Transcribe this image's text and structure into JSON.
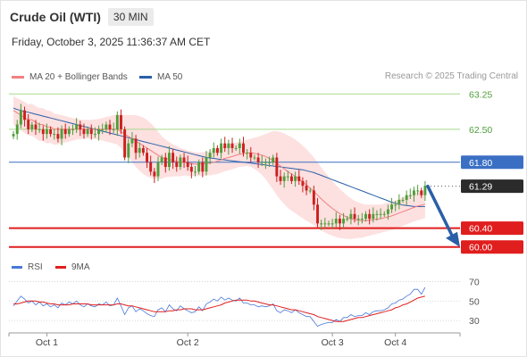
{
  "header": {
    "title": "Crude Oil (WTI)",
    "timeframe": "30 MIN",
    "datetime": "Friday, October 3, 2025 11:36:37 AM CET"
  },
  "legend": {
    "ma20_label": "MA 20 + Bollinger Bands",
    "ma50_label": "MA 50",
    "credit": "Research © 2025 Trading Central",
    "rsi_label": "RSI",
    "rsi_ma_label": "9MA"
  },
  "colors": {
    "up": "#4f9d3a",
    "down": "#cc1f1f",
    "ma20": "#f08080",
    "ma50": "#2a5fa8",
    "band": "#fcd6d6",
    "resistance": "#a8d98a",
    "support_line": "#e01e1e",
    "pivot_line": "#3b6fc4",
    "rsi": "#4a78d8",
    "rsi_ma": "#e01e1e"
  },
  "chart_data": [
    {
      "type": "candlestick",
      "y_range": [
        59.9,
        63.35
      ],
      "levels": [
        {
          "value": 63.25,
          "label": "63.25",
          "kind": "resistance"
        },
        {
          "value": 62.5,
          "label": "62.50",
          "kind": "resistance"
        },
        {
          "value": 61.8,
          "label": "61.80",
          "kind": "pivot"
        },
        {
          "value": 61.29,
          "label": "61.29",
          "kind": "last"
        },
        {
          "value": 60.4,
          "label": "60.40",
          "kind": "support"
        },
        {
          "value": 60.0,
          "label": "60.00",
          "kind": "support"
        }
      ],
      "x_ticks": [
        "Oct 1",
        "Oct 2",
        "Oct 3",
        "Oct 4"
      ],
      "x_tick_index": [
        9,
        47,
        86,
        103
      ],
      "close": [
        62.4,
        62.6,
        62.9,
        62.7,
        62.5,
        62.6,
        62.5,
        62.5,
        62.4,
        62.5,
        62.4,
        62.4,
        62.3,
        62.5,
        62.4,
        62.5,
        62.5,
        62.6,
        62.5,
        62.4,
        62.5,
        62.4,
        62.4,
        62.5,
        62.5,
        62.6,
        62.5,
        62.5,
        62.8,
        62.5,
        61.9,
        62.2,
        62.3,
        62.0,
        62.1,
        62.0,
        61.8,
        61.6,
        61.5,
        61.8,
        61.9,
        61.7,
        62.0,
        61.8,
        61.7,
        61.9,
        61.8,
        61.7,
        61.6,
        61.6,
        61.8,
        61.6,
        61.9,
        62.0,
        62.1,
        62.0,
        62.2,
        62.1,
        62.2,
        62.1,
        62.1,
        62.2,
        62.0,
        62.0,
        61.9,
        61.9,
        61.8,
        61.8,
        61.8,
        61.8,
        61.9,
        61.5,
        61.4,
        61.5,
        61.5,
        61.4,
        61.5,
        61.4,
        61.3,
        61.2,
        61.2,
        60.9,
        60.5,
        60.5,
        60.5,
        60.5,
        60.5,
        60.6,
        60.5,
        60.6,
        60.6,
        60.7,
        60.6,
        60.6,
        60.6,
        60.7,
        60.6,
        60.7,
        60.7,
        60.7,
        60.7,
        60.8,
        60.9,
        60.9,
        61.0,
        61.0,
        61.1,
        61.1,
        61.2,
        61.2,
        61.1,
        61.3
      ],
      "ma20": [
        62.9,
        62.85,
        62.8,
        62.75,
        62.7,
        62.7,
        62.65,
        62.6,
        62.6,
        62.55,
        62.55,
        62.5,
        62.5,
        62.5,
        62.5,
        62.5,
        62.5,
        62.5,
        62.5,
        62.5,
        62.5,
        62.5,
        62.5,
        62.5,
        62.5,
        62.5,
        62.5,
        62.5,
        62.5,
        62.45,
        62.4,
        62.35,
        62.3,
        62.25,
        62.2,
        62.15,
        62.1,
        62.05,
        62.0,
        61.95,
        61.9,
        61.88,
        61.86,
        61.84,
        61.82,
        61.8,
        61.8,
        61.78,
        61.77,
        61.76,
        61.76,
        61.76,
        61.77,
        61.78,
        61.8,
        61.82,
        61.85,
        61.88,
        61.9,
        61.92,
        61.95,
        61.97,
        61.98,
        62.0,
        62.0,
        61.99,
        61.97,
        61.95,
        61.92,
        61.88,
        61.84,
        61.78,
        61.72,
        61.66,
        61.6,
        61.55,
        61.5,
        61.44,
        61.38,
        61.32,
        61.25,
        61.18,
        61.1,
        61.02,
        60.95,
        60.88,
        60.82,
        60.76,
        60.71,
        60.67,
        60.63,
        60.6,
        60.58,
        60.57,
        60.56,
        60.56,
        60.57,
        60.58,
        60.59,
        60.6,
        60.62,
        60.64,
        60.66,
        60.69,
        60.72,
        60.75,
        60.78,
        60.81,
        60.84,
        60.87,
        60.89,
        60.91
      ],
      "ma50": [
        62.95,
        62.92,
        62.9,
        62.88,
        62.86,
        62.84,
        62.82,
        62.8,
        62.78,
        62.76,
        62.74,
        62.72,
        62.7,
        62.68,
        62.66,
        62.64,
        62.62,
        62.6,
        62.58,
        62.56,
        62.54,
        62.52,
        62.5,
        62.48,
        62.46,
        62.44,
        62.42,
        62.4,
        62.38,
        62.36,
        62.34,
        62.32,
        62.3,
        62.28,
        62.26,
        62.24,
        62.22,
        62.2,
        62.18,
        62.16,
        62.14,
        62.12,
        62.1,
        62.08,
        62.06,
        62.04,
        62.02,
        62.0,
        61.98,
        61.96,
        61.94,
        61.92,
        61.9,
        61.89,
        61.88,
        61.87,
        61.86,
        61.85,
        61.84,
        61.83,
        61.82,
        61.81,
        61.8,
        61.79,
        61.78,
        61.77,
        61.76,
        61.75,
        61.74,
        61.73,
        61.72,
        61.71,
        61.7,
        61.69,
        61.68,
        61.67,
        61.66,
        61.65,
        61.64,
        61.62,
        61.6,
        61.58,
        61.55,
        61.52,
        61.49,
        61.46,
        61.43,
        61.4,
        61.37,
        61.34,
        61.31,
        61.28,
        61.25,
        61.22,
        61.19,
        61.16,
        61.13,
        61.1,
        61.07,
        61.04,
        61.01,
        60.98,
        60.95,
        60.93,
        60.91,
        60.89,
        60.88,
        60.87,
        60.86,
        60.86,
        60.86,
        60.86
      ],
      "band_half_width": [
        0.3,
        0.31,
        0.32,
        0.33,
        0.33,
        0.34,
        0.34,
        0.35,
        0.35,
        0.35,
        0.34,
        0.33,
        0.32,
        0.3,
        0.28,
        0.26,
        0.24,
        0.22,
        0.21,
        0.2,
        0.2,
        0.2,
        0.21,
        0.22,
        0.24,
        0.26,
        0.28,
        0.3,
        0.32,
        0.35,
        0.4,
        0.45,
        0.5,
        0.55,
        0.58,
        0.6,
        0.6,
        0.58,
        0.55,
        0.5,
        0.45,
        0.4,
        0.37,
        0.34,
        0.32,
        0.3,
        0.28,
        0.27,
        0.26,
        0.25,
        0.25,
        0.25,
        0.25,
        0.26,
        0.26,
        0.27,
        0.27,
        0.27,
        0.27,
        0.27,
        0.27,
        0.27,
        0.27,
        0.28,
        0.3,
        0.33,
        0.37,
        0.42,
        0.48,
        0.55,
        0.62,
        0.68,
        0.72,
        0.75,
        0.77,
        0.78,
        0.78,
        0.78,
        0.77,
        0.76,
        0.74,
        0.72,
        0.7,
        0.67,
        0.64,
        0.61,
        0.58,
        0.55,
        0.52,
        0.49,
        0.46,
        0.43,
        0.4,
        0.38,
        0.36,
        0.34,
        0.33,
        0.32,
        0.31,
        0.3,
        0.3,
        0.3,
        0.3,
        0.3,
        0.3,
        0.3,
        0.3,
        0.3,
        0.3,
        0.3,
        0.3,
        0.3
      ],
      "forecast_arrow": {
        "from": 61.29,
        "to": 60.0
      }
    },
    {
      "type": "line",
      "name": "RSI",
      "y_range": [
        20,
        75
      ],
      "y_ticks": [
        70,
        50,
        30
      ],
      "rsi": [
        45,
        50,
        55,
        52,
        48,
        50,
        46,
        49,
        45,
        47,
        44,
        46,
        43,
        48,
        46,
        49,
        47,
        50,
        46,
        44,
        47,
        45,
        44,
        47,
        46,
        49,
        45,
        46,
        53,
        45,
        36,
        43,
        45,
        39,
        42,
        40,
        37,
        35,
        34,
        41,
        43,
        39,
        46,
        42,
        40,
        45,
        42,
        40,
        38,
        39,
        44,
        40,
        47,
        49,
        52,
        50,
        54,
        51,
        53,
        51,
        50,
        53,
        48,
        48,
        46,
        46,
        44,
        45,
        44,
        45,
        47,
        40,
        38,
        41,
        40,
        38,
        41,
        38,
        36,
        34,
        34,
        29,
        24,
        26,
        27,
        28,
        28,
        31,
        29,
        33,
        33,
        36,
        34,
        35,
        35,
        38,
        36,
        39,
        40,
        40,
        41,
        43,
        47,
        48,
        51,
        52,
        55,
        57,
        62,
        62,
        57,
        64
      ],
      "rsi_ma": [
        47,
        47,
        48,
        49,
        50,
        50,
        50,
        49,
        49,
        48,
        47,
        47,
        46,
        46,
        46,
        46,
        47,
        47,
        47,
        47,
        47,
        46,
        46,
        46,
        46,
        46,
        46,
        46,
        47,
        47,
        46,
        45,
        45,
        44,
        43,
        42,
        41,
        40,
        39,
        39,
        39,
        39,
        40,
        40,
        41,
        41,
        42,
        42,
        42,
        41,
        41,
        41,
        42,
        43,
        44,
        45,
        46,
        48,
        49,
        50,
        51,
        51,
        51,
        51,
        50,
        50,
        49,
        48,
        47,
        46,
        46,
        45,
        44,
        43,
        42,
        41,
        41,
        40,
        39,
        38,
        37,
        36,
        34,
        33,
        32,
        31,
        30,
        29,
        29,
        29,
        30,
        31,
        32,
        33,
        33,
        34,
        35,
        36,
        37,
        38,
        39,
        40,
        41,
        43,
        44,
        46,
        47,
        49,
        51,
        53,
        54,
        55
      ]
    }
  ]
}
